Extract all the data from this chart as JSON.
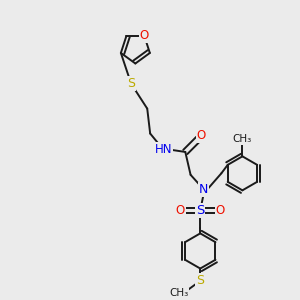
{
  "bg_color": "#ebebeb",
  "bond_color": "#1a1a1a",
  "O_color": "#ee1100",
  "N_color": "#0000ee",
  "S_color": "#bbaa00",
  "H_color": "#888888",
  "line_width": 1.4,
  "dbo": 0.12,
  "figsize": [
    3.0,
    3.0
  ],
  "dpi": 100,
  "xlim": [
    0,
    10
  ],
  "ylim": [
    0,
    10
  ]
}
